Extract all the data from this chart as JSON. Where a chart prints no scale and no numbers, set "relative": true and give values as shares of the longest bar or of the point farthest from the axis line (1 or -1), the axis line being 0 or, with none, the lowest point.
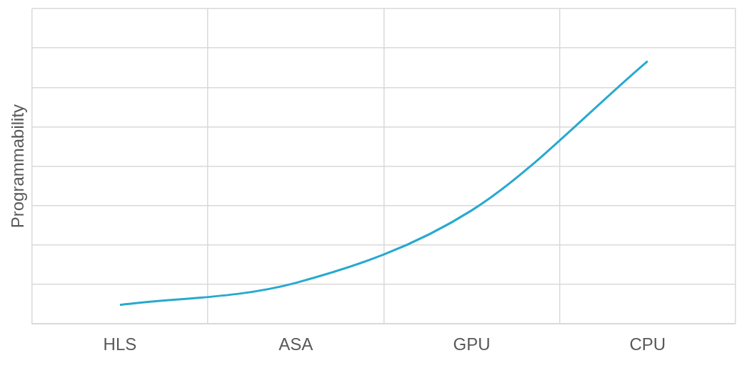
{
  "chart_data": {
    "type": "line",
    "ylabel": "Programmability",
    "categories": [
      "HLS",
      "ASA",
      "GPU",
      "CPU"
    ],
    "series": [
      {
        "color": "#27a9cf",
        "values": [
          0.072,
          0.156,
          0.432,
          1
        ]
      }
    ],
    "relative": true,
    "grid": true,
    "marker": "none"
  }
}
